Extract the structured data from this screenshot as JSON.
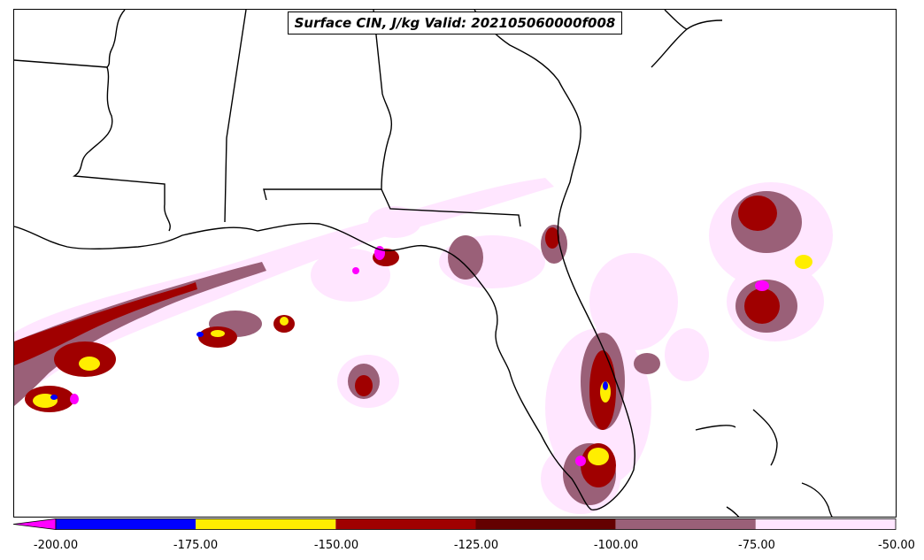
{
  "title": "Surface CIN, J/kg Valid: 202105060000f008",
  "colorbar": {
    "ticks": [
      "-200.00",
      "-175.00",
      "-150.00",
      "-125.00",
      "-100.00",
      "-75.00",
      "-50.00"
    ],
    "bins": [
      {
        "from": -200,
        "to": -175,
        "color": "#0000ff"
      },
      {
        "from": -175,
        "to": -150,
        "color": "#ffee00"
      },
      {
        "from": -150,
        "to": -125,
        "color": "#a00000"
      },
      {
        "from": -125,
        "to": -100,
        "color": "#640000"
      },
      {
        "from": -100,
        "to": -75,
        "color": "#9a6078"
      },
      {
        "from": -75,
        "to": -50,
        "color": "#ffe6ff"
      }
    ],
    "under_color": "#ff00ff"
  }
}
